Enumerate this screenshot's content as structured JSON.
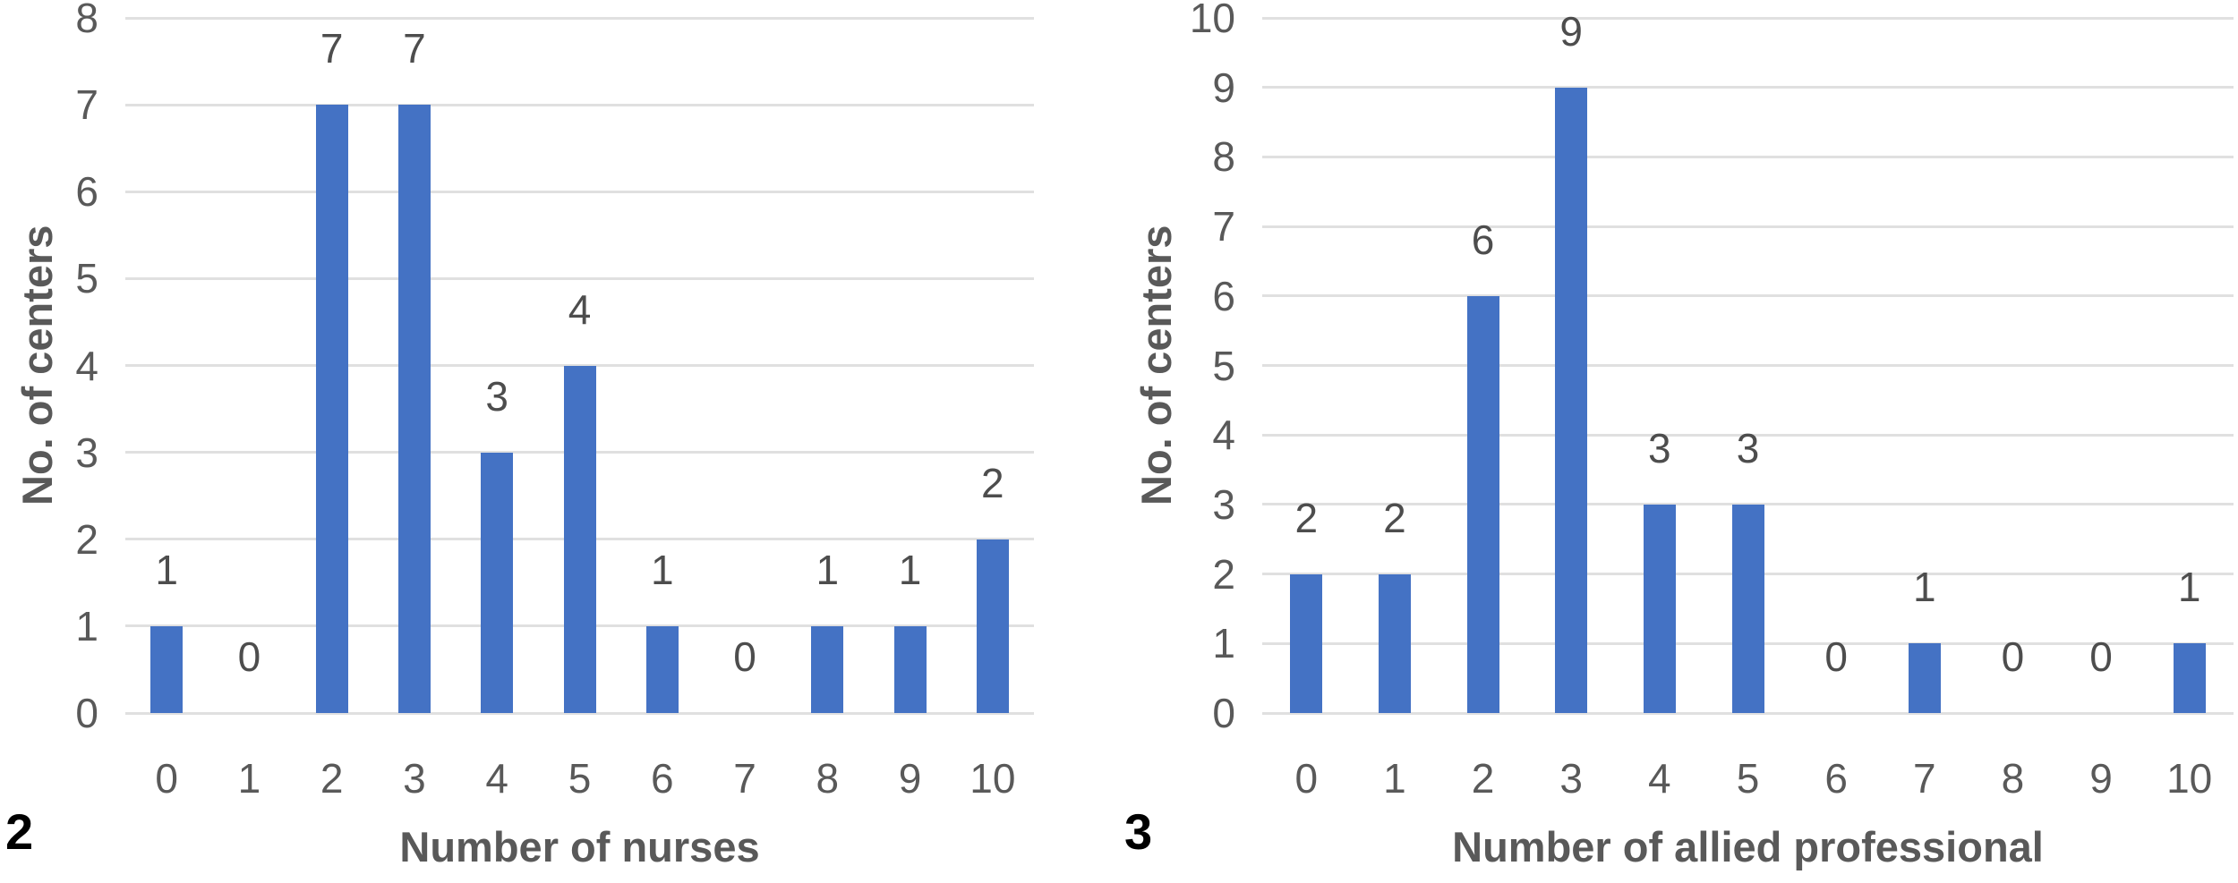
{
  "chart_data": [
    {
      "type": "bar",
      "fig_label": "2",
      "title": "",
      "xlabel": "Number of nurses",
      "ylabel": "No. of centers",
      "categories": [
        "0",
        "1",
        "2",
        "3",
        "4",
        "5",
        "6",
        "7",
        "8",
        "9",
        "10"
      ],
      "values": [
        1,
        0,
        7,
        7,
        3,
        4,
        1,
        0,
        1,
        1,
        2
      ],
      "data_labels": [
        "1",
        "0",
        "7",
        "7",
        "3",
        "4",
        "1",
        "0",
        "1",
        "1",
        "2"
      ],
      "ylim": [
        0,
        8
      ],
      "ytick_step": 1,
      "yticks": [
        "0",
        "1",
        "2",
        "3",
        "4",
        "5",
        "6",
        "7",
        "8"
      ],
      "grid": true,
      "legend": "none"
    },
    {
      "type": "bar",
      "fig_label": "3",
      "title": "",
      "xlabel": "Number of allied professional",
      "ylabel": "No. of centers",
      "categories": [
        "0",
        "1",
        "2",
        "3",
        "4",
        "5",
        "6",
        "7",
        "8",
        "9",
        "10"
      ],
      "values": [
        2,
        2,
        6,
        9,
        3,
        3,
        0,
        1,
        0,
        0,
        1
      ],
      "data_labels": [
        "2",
        "2",
        "6",
        "9",
        "3",
        "3",
        "0",
        "1",
        "0",
        "0",
        "1"
      ],
      "ylim": [
        0,
        10
      ],
      "ytick_step": 1,
      "yticks": [
        "0",
        "1",
        "2",
        "3",
        "4",
        "5",
        "6",
        "7",
        "8",
        "9",
        "10"
      ],
      "grid": true,
      "legend": "none"
    }
  ],
  "colors": {
    "bar": "#4472C4",
    "gridline": "#E0E0E0",
    "tick_text": "#595959",
    "axis_title_text": "#595959",
    "data_label_text": "#4D4D4D",
    "figure_label_text": "#000000",
    "background": "#FFFFFF"
  }
}
